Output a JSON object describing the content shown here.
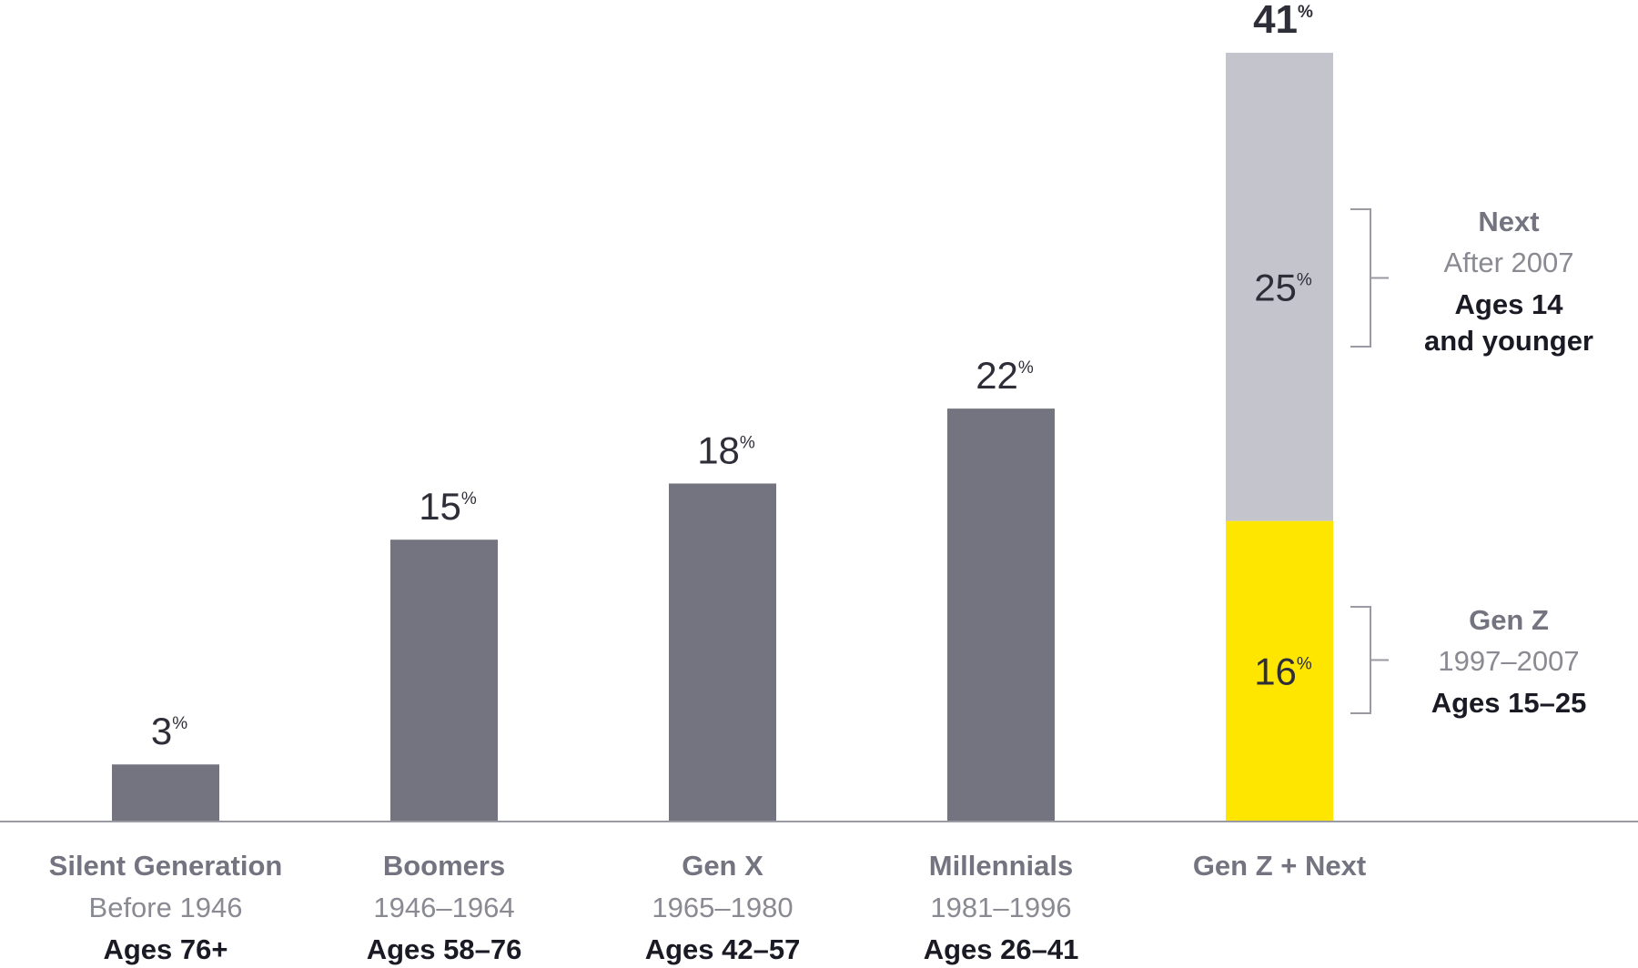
{
  "chart_data": {
    "type": "bar",
    "title": "",
    "xlabel": "",
    "ylabel": "",
    "ylim": [
      0,
      41
    ],
    "percent_sign": "%",
    "categories": [
      {
        "name": "Silent Generation",
        "years": "Before 1946",
        "ages": "Ages 76+",
        "value": 3,
        "label": "3"
      },
      {
        "name": "Boomers",
        "years": "1946–1964",
        "ages": "Ages 58–76",
        "value": 15,
        "label": "15"
      },
      {
        "name": "Gen X",
        "years": "1965–1980",
        "ages": "Ages 42–57",
        "value": 18,
        "label": "18"
      },
      {
        "name": "Millennials",
        "years": "1981–1996",
        "ages": "Ages 26–41",
        "value": 22,
        "label": "22"
      }
    ],
    "stacked": {
      "name": "Gen Z + Next",
      "total": 41,
      "total_label": "41",
      "segments": [
        {
          "name": "Gen Z",
          "years": "1997–2007",
          "ages_lines": [
            "Ages 15–25"
          ],
          "value": 16,
          "label": "16",
          "color": "#FFE600"
        },
        {
          "name": "Next",
          "years": "After 2007",
          "ages_lines": [
            "Ages 14",
            "and younger"
          ],
          "value": 25,
          "label": "25",
          "color": "#C4C4CC"
        }
      ]
    },
    "colors": {
      "bar": "#747480",
      "axis": "#9a9aa2",
      "bracket": "#9a9aa2"
    }
  }
}
